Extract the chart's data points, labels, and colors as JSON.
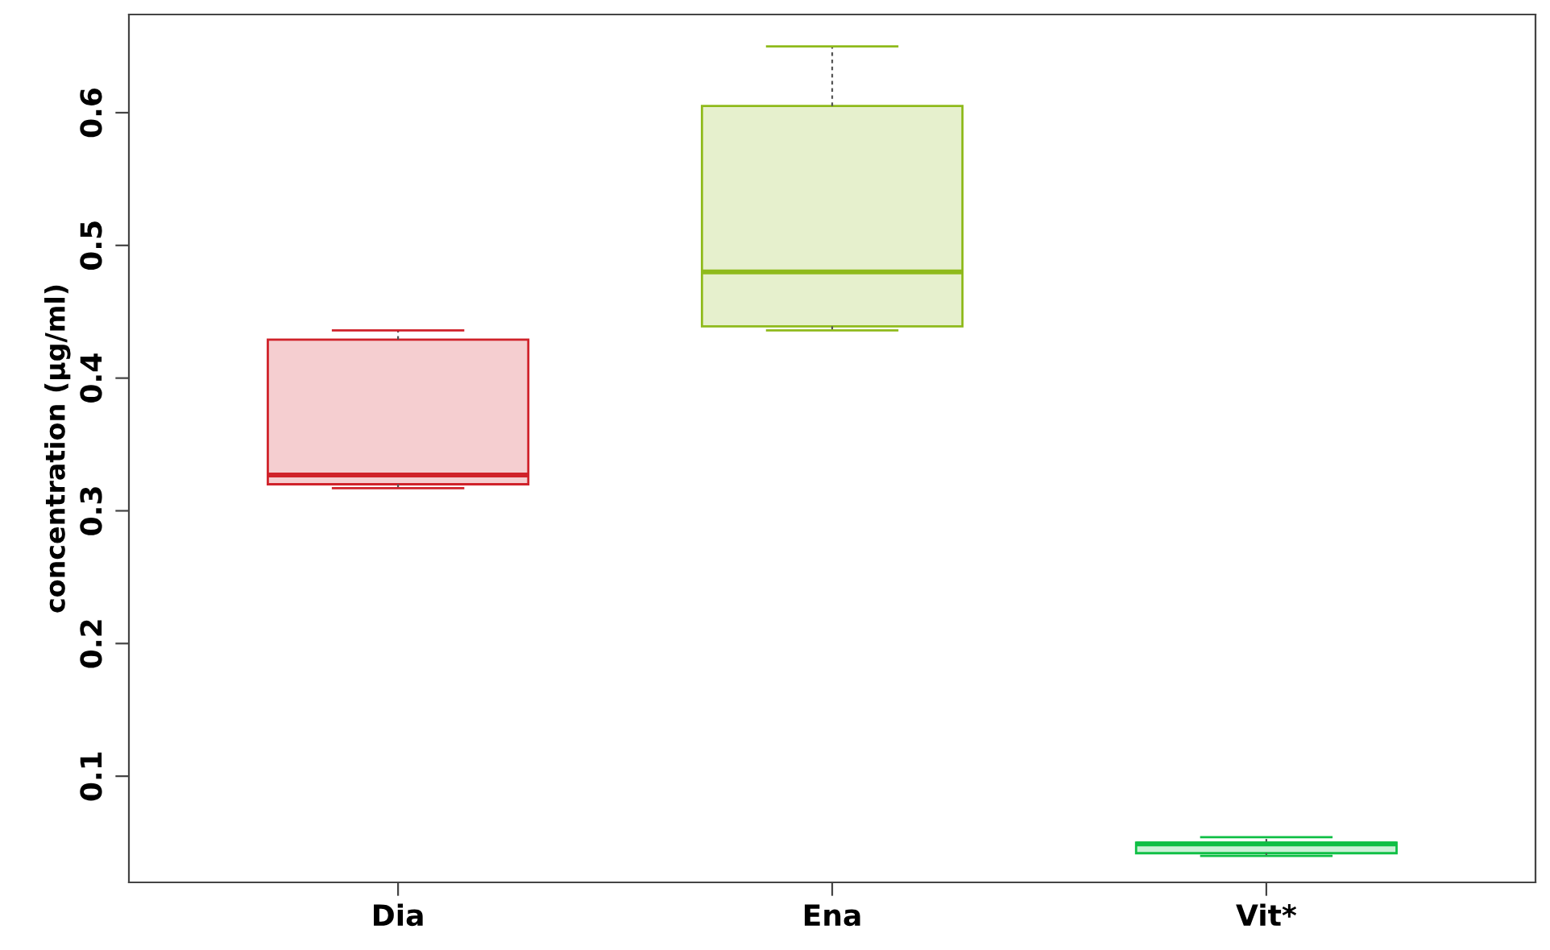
{
  "chart_data": {
    "type": "box",
    "ylabel": "concentration (µg/ml)",
    "categories": [
      "Dia",
      "Ena",
      "Vit*"
    ],
    "boxes": [
      {
        "low": 0.317,
        "q1": 0.32,
        "median": 0.327,
        "q3": 0.429,
        "high": 0.436
      },
      {
        "low": 0.436,
        "q1": 0.439,
        "median": 0.48,
        "q3": 0.605,
        "high": 0.65
      },
      {
        "low": 0.04,
        "q1": 0.042,
        "median": 0.049,
        "q3": 0.05,
        "high": 0.054
      }
    ],
    "colors": [
      "#d0222a",
      "#8fba1c",
      "#0fbf45"
    ],
    "ylim": [
      0.02,
      0.674
    ],
    "yticks": [
      0.1,
      0.2,
      0.3,
      0.4,
      0.5,
      0.6
    ],
    "grid": false
  }
}
